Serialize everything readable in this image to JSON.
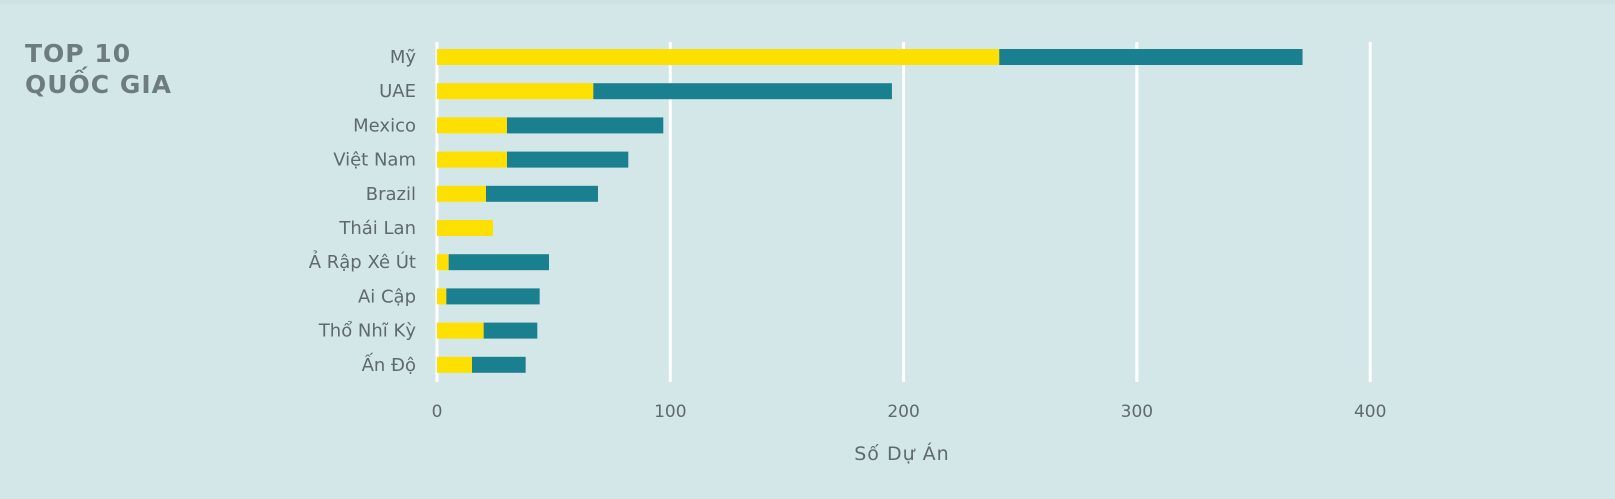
{
  "title_lines": [
    "TOP 10",
    "QUỐC GIA"
  ],
  "chart_data": {
    "type": "bar",
    "orientation": "horizontal",
    "stacked": true,
    "categories": [
      "Mỹ",
      "UAE",
      "Mexico",
      "Việt Nam",
      "Brazil",
      "Thái Lan",
      "Ả Rập Xê Út",
      "Ai Cập",
      "Thổ Nhĩ Kỳ",
      "Ấn Độ"
    ],
    "series": [
      {
        "color": "#fde000",
        "values": [
          241,
          67,
          30,
          30,
          21,
          24,
          5,
          4,
          20,
          15
        ]
      },
      {
        "color": "#1a7f8e",
        "values": [
          130,
          128,
          67,
          52,
          48,
          0,
          43,
          40,
          23,
          23
        ]
      }
    ],
    "xlabel": "Số Dự Án",
    "ylabel": "",
    "xlim": [
      0,
      400
    ],
    "xticks": [
      0,
      100,
      200,
      300,
      400
    ],
    "grid": true,
    "legend": "none"
  }
}
